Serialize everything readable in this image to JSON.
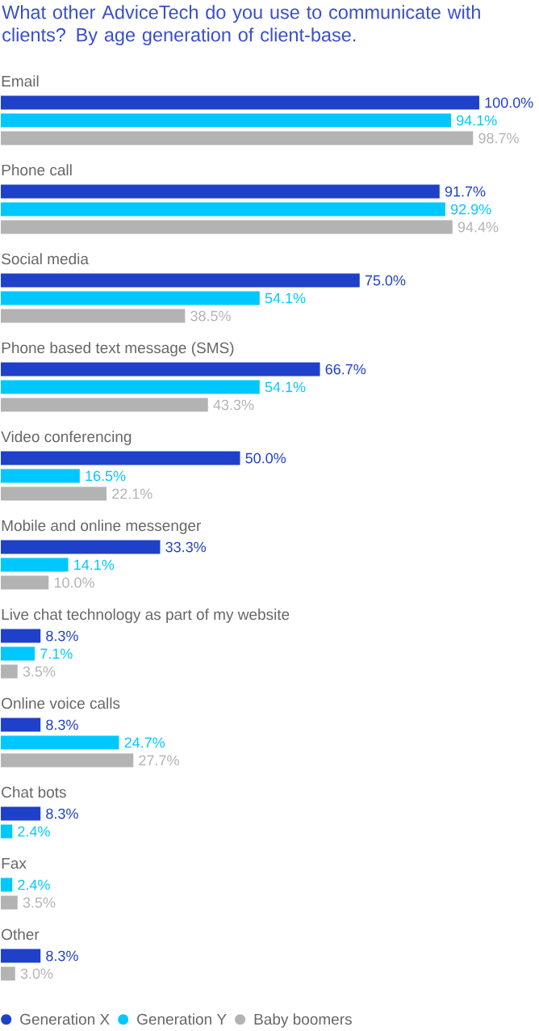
{
  "chart_data": {
    "type": "bar",
    "orientation": "horizontal",
    "legend": "bottom",
    "title": "What other AdviceTech do you use to communicate with clients? By age generation of client-base.",
    "categories": [
      "Email",
      "Phone call",
      "Social media",
      "Phone based text message (SMS)",
      "Video conferencing",
      "Mobile and online messenger",
      "Live chat technology as part of my website",
      "Online voice calls",
      "Chat bots",
      "Fax",
      "Other"
    ],
    "series": [
      {
        "name": "Generation X",
        "color": "#1f40c8",
        "values": [
          100.0,
          91.7,
          75.0,
          66.7,
          50.0,
          33.3,
          8.3,
          8.3,
          8.3,
          null,
          8.3
        ],
        "value_labels": [
          "100.0%",
          "91.7%",
          "75.0%",
          "66.7%",
          "50.0%",
          "33.3%",
          "8.3%",
          "8.3%",
          "8.3%",
          null,
          "8.3%"
        ]
      },
      {
        "name": "Generation Y",
        "color": "#00c8ff",
        "values": [
          94.1,
          92.9,
          54.1,
          54.1,
          16.5,
          14.1,
          7.1,
          24.7,
          2.4,
          2.4,
          null
        ],
        "value_labels": [
          "94.1%",
          "92.9%",
          "54.1%",
          "54.1%",
          "16.5%",
          "14.1%",
          "7.1%",
          "24.7%",
          "2.4%",
          "2.4%",
          null
        ]
      },
      {
        "name": "Baby boomers",
        "color": "#b3b3b3",
        "values": [
          98.7,
          94.4,
          38.5,
          43.3,
          22.1,
          10.0,
          3.5,
          27.7,
          null,
          3.5,
          3.0
        ],
        "value_labels": [
          "98.7%",
          "94.4%",
          "38.5%",
          "43.3%",
          "22.1%",
          "10.0%",
          "3.5%",
          "27.7%",
          null,
          "3.5%",
          "3.0%"
        ]
      }
    ]
  }
}
